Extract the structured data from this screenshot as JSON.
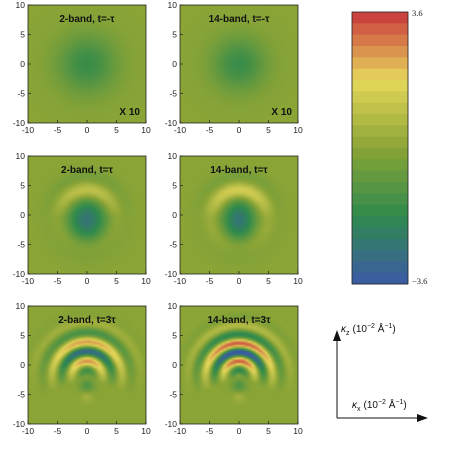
{
  "chart_data": {
    "type": "heatmap",
    "panel_axes": {
      "xlim": [
        -10,
        10
      ],
      "ylim": [
        -10,
        10
      ],
      "x_ticks": [
        "-10",
        "-5",
        "0",
        "5",
        "10"
      ],
      "y_ticks": [
        "10",
        "5",
        "0",
        "-5",
        "-10"
      ]
    },
    "panels": [
      {
        "title": "2-band, t=-τ",
        "annotation": "X 10",
        "model": "2-band",
        "time": "-τ",
        "pattern": "blob"
      },
      {
        "title": "14-band, t=-τ",
        "annotation": "X 10",
        "model": "14-band",
        "time": "-τ",
        "pattern": "blob"
      },
      {
        "title": "2-band, t=τ",
        "annotation": "",
        "model": "2-band",
        "time": "τ",
        "pattern": "ring"
      },
      {
        "title": "14-band, t=τ",
        "annotation": "",
        "model": "14-band",
        "time": "τ",
        "pattern": "ring"
      },
      {
        "title": "2-band, t=3τ",
        "annotation": "",
        "model": "2-band",
        "time": "3τ",
        "pattern": "fringes"
      },
      {
        "title": "14-band, t=3τ",
        "annotation": "",
        "model": "14-band",
        "time": "3τ",
        "pattern": "fringes"
      }
    ],
    "colorbar": {
      "min": -3.6,
      "max": 3.6,
      "min_label": "−3.6",
      "max_label": "3.6",
      "colors": [
        "#3c5aa6",
        "#2f8a4c",
        "#8aa436",
        "#e6d85a",
        "#c8363c"
      ]
    },
    "axes_guide": {
      "x_label_symbol": "κ",
      "x_label_sub": "x",
      "x_label_unit": "(10",
      "x_label_exp": "−2",
      "x_label_unit2": " Å",
      "x_label_exp2": "−1",
      "x_label_close": ")",
      "y_label_symbol": "κ",
      "y_label_sub": "z",
      "y_label_unit": "(10",
      "y_label_exp": "−2",
      "y_label_unit2": " Å",
      "y_label_exp2": "−1",
      "y_label_close": ")"
    }
  }
}
